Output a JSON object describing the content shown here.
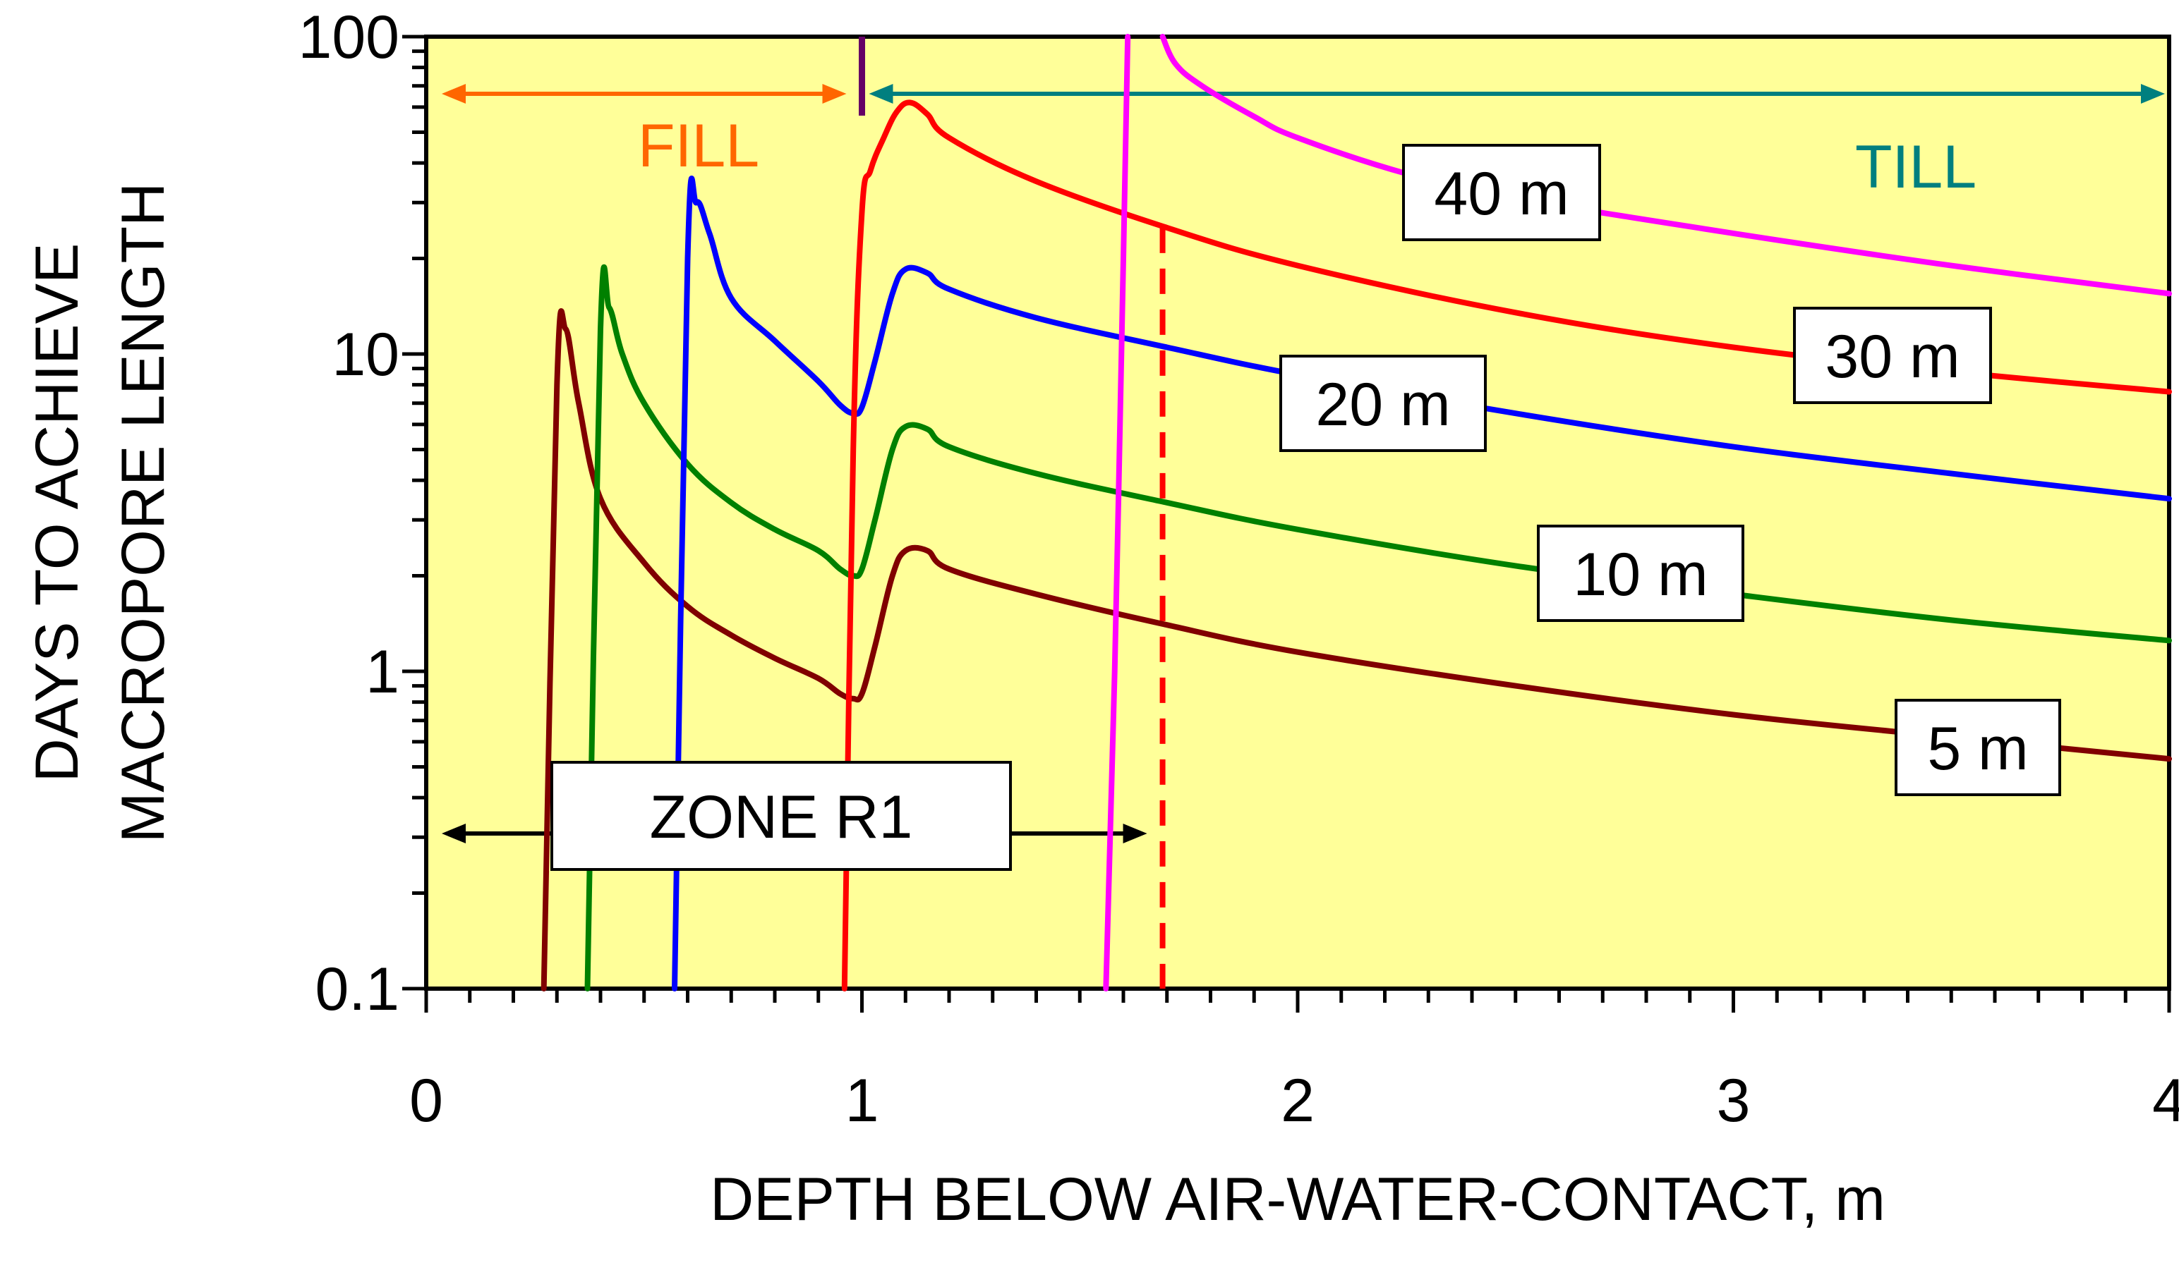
{
  "chart_data": {
    "type": "line",
    "title": "",
    "xlabel": "DEPTH BELOW AIR-WATER-CONTACT, m",
    "ylabel_lines": [
      "DAYS TO ACHIEVE",
      "MACROPORE LENGTH"
    ],
    "xlim": [
      0,
      4
    ],
    "ylim": [
      0.1,
      100
    ],
    "yscale": "log",
    "x_ticks": [
      0,
      1,
      2,
      3,
      4
    ],
    "x_tick_labels": [
      "0",
      "1",
      "2",
      "3",
      "4"
    ],
    "y_ticks": [
      0.1,
      1,
      10,
      100
    ],
    "y_tick_labels": [
      "0.1",
      "1",
      "10",
      "100"
    ],
    "plot_background": "#FFFF99",
    "series": [
      {
        "name": "5 m",
        "label": "5 m",
        "color": "#800000",
        "x": [
          0.27,
          0.3,
          0.32,
          0.35,
          0.4,
          0.5,
          0.6,
          0.7,
          0.8,
          0.9,
          0.95,
          0.98,
          1.0,
          1.03,
          1.07,
          1.1,
          1.15,
          1.2,
          1.4,
          1.7,
          2.0,
          2.5,
          3.0,
          3.5,
          4.0
        ],
        "y": [
          0.1,
          8,
          12,
          7,
          3.5,
          2.2,
          1.6,
          1.3,
          1.1,
          0.95,
          0.85,
          0.82,
          0.85,
          1.2,
          2.0,
          2.4,
          2.4,
          2.1,
          1.75,
          1.4,
          1.15,
          0.9,
          0.73,
          0.62,
          0.53
        ]
      },
      {
        "name": "10 m",
        "label": "10 m",
        "color": "#008000",
        "x": [
          0.37,
          0.4,
          0.42,
          0.45,
          0.5,
          0.6,
          0.7,
          0.8,
          0.9,
          0.95,
          0.98,
          1.0,
          1.03,
          1.07,
          1.1,
          1.15,
          1.2,
          1.4,
          1.7,
          2.0,
          2.5,
          3.0,
          3.5,
          4.0
        ],
        "y": [
          0.1,
          12,
          14,
          10,
          7,
          4.5,
          3.4,
          2.8,
          2.4,
          2.1,
          2.0,
          2.1,
          3.0,
          5.0,
          5.9,
          5.8,
          5.1,
          4.2,
          3.4,
          2.8,
          2.15,
          1.75,
          1.45,
          1.25
        ]
      },
      {
        "name": "20 m",
        "label": "20 m",
        "color": "#0000FF",
        "x": [
          0.57,
          0.6,
          0.62,
          0.65,
          0.7,
          0.8,
          0.9,
          0.95,
          0.98,
          1.0,
          1.03,
          1.07,
          1.1,
          1.15,
          1.2,
          1.4,
          1.7,
          2.0,
          2.5,
          3.0,
          3.5,
          4.0
        ],
        "y": [
          0.1,
          20,
          30,
          24,
          15,
          11,
          8.2,
          6.9,
          6.5,
          6.8,
          9.5,
          15.5,
          18.5,
          18,
          16,
          13,
          10.5,
          8.6,
          6.5,
          5.1,
          4.2,
          3.5
        ]
      },
      {
        "name": "30 m",
        "label": "30 m",
        "color": "#FF0000",
        "x": [
          0.96,
          0.98,
          1.0,
          1.02,
          1.05,
          1.08,
          1.11,
          1.15,
          1.2,
          1.4,
          1.7,
          2.0,
          2.5,
          3.0,
          3.5,
          4.0
        ],
        "y": [
          0.1,
          5,
          28,
          38,
          48,
          58,
          62,
          57,
          48,
          35,
          25,
          19,
          13.5,
          10.5,
          8.8,
          7.6
        ]
      },
      {
        "name": "40 m",
        "label": "40 m",
        "color": "#FF00FF",
        "x": [
          1.56,
          1.58,
          1.6,
          1.61
        ],
        "y": [
          0.1,
          1.0,
          20,
          100
        ]
      },
      {
        "name": "40 m (upper branch)",
        "label": "",
        "color": "#FF00FF",
        "x": [
          1.69,
          1.72,
          1.78,
          1.9,
          2.0,
          2.25,
          2.5,
          3.0,
          3.5,
          4.0
        ],
        "y": [
          100,
          82,
          70,
          56,
          48,
          37,
          31,
          24,
          19,
          15.5
        ]
      }
    ],
    "annotations": {
      "fill_label": "FILL",
      "till_label": "TILL",
      "zone_label": "ZONE R1",
      "fill_range_m": [
        0,
        1
      ],
      "till_range_m": [
        1,
        4
      ],
      "zone_range_m": [
        0,
        1.69
      ],
      "dashed_line_x_m": 1.69,
      "dashed_line_top_days": 25,
      "fill_color": "#FF6600",
      "till_color": "#007F7F",
      "boundary_color": "#660066"
    }
  }
}
